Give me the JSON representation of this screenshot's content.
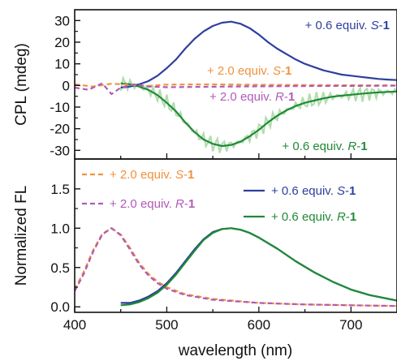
{
  "chart_data": [
    {
      "type": "line",
      "ylabel": "CPL (mdeg)",
      "xlim": [
        400,
        750
      ],
      "ylim": [
        -34,
        35
      ],
      "yticks": [
        -30,
        -20,
        -10,
        0,
        10,
        20,
        30
      ],
      "series": [
        {
          "name": "+ 0.6 equiv. S-1",
          "color": "#2e3f9e",
          "style": "solid",
          "x": [
            450,
            460,
            470,
            480,
            490,
            500,
            510,
            520,
            530,
            540,
            550,
            560,
            570,
            580,
            590,
            600,
            610,
            620,
            630,
            640,
            650,
            660,
            670,
            680,
            690,
            700,
            710,
            720,
            730,
            740,
            750
          ],
          "y": [
            -1,
            -0.5,
            0.5,
            2,
            4.5,
            8,
            12,
            17,
            21.5,
            25,
            27.5,
            29,
            29.5,
            28.5,
            26.5,
            23.5,
            20,
            17,
            14.5,
            12,
            10,
            8.5,
            7,
            6,
            5,
            4.5,
            4,
            3.5,
            3,
            2.7,
            2.5
          ]
        },
        {
          "name": "+ 0.6 equiv. R-1",
          "color": "#1f8a36",
          "style": "solid",
          "x": [
            450,
            460,
            470,
            480,
            490,
            500,
            510,
            520,
            530,
            540,
            550,
            560,
            570,
            580,
            590,
            600,
            610,
            620,
            630,
            640,
            650,
            660,
            670,
            680,
            690,
            700,
            710,
            720,
            730,
            740,
            750
          ],
          "y": [
            1,
            0.5,
            -0.5,
            -2,
            -4.5,
            -8,
            -12,
            -17,
            -21.5,
            -25,
            -27,
            -28,
            -27.5,
            -26,
            -23.5,
            -20.5,
            -17,
            -14,
            -11.5,
            -9.5,
            -8,
            -7,
            -6,
            -5.2,
            -4.7,
            -4.3,
            -3.9,
            -3.5,
            -3.2,
            -3,
            -2.8
          ]
        },
        {
          "name": "+ 2.0 equiv. S-1",
          "color": "#f0923b",
          "style": "dashed",
          "x": [
            400,
            420,
            440,
            460,
            480,
            500,
            550,
            600,
            650,
            700,
            750
          ],
          "y": [
            0.5,
            -0.5,
            0.8,
            0.3,
            -0.2,
            0.4,
            0.5,
            0.3,
            0.2,
            0.1,
            0
          ]
        },
        {
          "name": "+ 2.0 equiv. R-1",
          "color": "#b05bb8",
          "style": "dashed",
          "x": [
            400,
            415,
            430,
            440,
            450,
            465,
            480,
            500,
            550,
            600,
            650,
            700,
            750
          ],
          "y": [
            -1,
            -2,
            1,
            -4,
            -1,
            0.5,
            -0.5,
            -0.8,
            -0.6,
            -0.4,
            -0.3,
            -0.2,
            -0.1
          ]
        }
      ],
      "labels": [
        {
          "parts": [
            {
              "t": "+ 0.6 equiv. "
            },
            {
              "t": "S",
              "i": true
            },
            {
              "t": "-"
            },
            {
              "t": "1",
              "b": true
            }
          ],
          "color": "#2e3f9e"
        },
        {
          "parts": [
            {
              "t": "+ 2.0 equiv. "
            },
            {
              "t": "S",
              "i": true
            },
            {
              "t": "-"
            },
            {
              "t": "1",
              "b": true
            }
          ],
          "color": "#f0923b"
        },
        {
          "parts": [
            {
              "t": "+ 2.0 equiv. "
            },
            {
              "t": "R",
              "i": true
            },
            {
              "t": "-"
            },
            {
              "t": "1",
              "b": true
            }
          ],
          "color": "#b05bb8"
        },
        {
          "parts": [
            {
              "t": "+ 0.6 equiv. "
            },
            {
              "t": "R",
              "i": true
            },
            {
              "t": "-"
            },
            {
              "t": "1",
              "b": true
            }
          ],
          "color": "#1f8a36"
        }
      ]
    },
    {
      "type": "line",
      "xlabel": "wavelength (nm)",
      "ylabel": "Normalized FL",
      "xlim": [
        400,
        750
      ],
      "ylim": [
        -0.07,
        1.88
      ],
      "xticks": [
        400,
        500,
        600,
        700
      ],
      "yticks": [
        0.0,
        0.5,
        1.0,
        1.5
      ],
      "legend_placement": "top",
      "series": [
        {
          "name": "+ 2.0 equiv. S-1",
          "color": "#f0923b",
          "style": "dashed",
          "x": [
            400,
            410,
            420,
            430,
            440,
            450,
            460,
            470,
            480,
            490,
            500,
            520,
            550,
            600,
            650,
            700,
            750
          ],
          "y": [
            0.22,
            0.45,
            0.72,
            0.93,
            1.0,
            0.92,
            0.75,
            0.56,
            0.42,
            0.32,
            0.25,
            0.16,
            0.1,
            0.05,
            0.03,
            0.02,
            0.01
          ]
        },
        {
          "name": "+ 2.0 equiv. R-1",
          "color": "#b05bb8",
          "style": "dashed",
          "x": [
            400,
            410,
            420,
            430,
            440,
            450,
            460,
            470,
            480,
            490,
            500,
            520,
            550,
            600,
            650,
            700,
            750
          ],
          "y": [
            0.2,
            0.42,
            0.7,
            0.92,
            1.0,
            0.91,
            0.73,
            0.54,
            0.4,
            0.3,
            0.23,
            0.15,
            0.09,
            0.05,
            0.03,
            0.02,
            0.01
          ]
        },
        {
          "name": "+ 0.6 equiv. S-1",
          "color": "#2e3f9e",
          "style": "solid",
          "x": [
            450,
            460,
            470,
            480,
            490,
            500,
            510,
            520,
            530,
            540,
            550,
            560,
            570,
            580,
            590,
            600,
            620,
            640,
            660,
            680,
            700,
            720,
            750
          ],
          "y": [
            0.05,
            0.05,
            0.08,
            0.13,
            0.2,
            0.3,
            0.43,
            0.58,
            0.73,
            0.86,
            0.95,
            0.99,
            1.0,
            0.98,
            0.94,
            0.88,
            0.74,
            0.58,
            0.44,
            0.32,
            0.22,
            0.15,
            0.08
          ]
        },
        {
          "name": "+ 0.6 equiv. R-1",
          "color": "#1f8a36",
          "style": "solid",
          "x": [
            450,
            460,
            470,
            480,
            490,
            500,
            510,
            520,
            530,
            540,
            550,
            560,
            570,
            580,
            590,
            600,
            620,
            640,
            660,
            680,
            700,
            720,
            750
          ],
          "y": [
            0.02,
            0.03,
            0.06,
            0.11,
            0.18,
            0.28,
            0.41,
            0.56,
            0.71,
            0.85,
            0.94,
            0.99,
            1.0,
            0.98,
            0.94,
            0.88,
            0.74,
            0.58,
            0.44,
            0.32,
            0.22,
            0.15,
            0.08
          ]
        }
      ],
      "legend": [
        {
          "parts": [
            {
              "t": "+ 2.0 equiv. "
            },
            {
              "t": "S",
              "i": true
            },
            {
              "t": "-"
            },
            {
              "t": "1",
              "b": true
            }
          ],
          "color": "#f0923b",
          "style": "dashed"
        },
        {
          "parts": [
            {
              "t": "+ 2.0 equiv. "
            },
            {
              "t": "R",
              "i": true
            },
            {
              "t": "-"
            },
            {
              "t": "1",
              "b": true
            }
          ],
          "color": "#b05bb8",
          "style": "dashed"
        },
        {
          "parts": [
            {
              "t": "+ 0.6 equiv. "
            },
            {
              "t": "S",
              "i": true
            },
            {
              "t": "-"
            },
            {
              "t": "1",
              "b": true
            }
          ],
          "color": "#2e3f9e",
          "style": "solid"
        },
        {
          "parts": [
            {
              "t": "+ 0.6 equiv. "
            },
            {
              "t": "R",
              "i": true
            },
            {
              "t": "-"
            },
            {
              "t": "1",
              "b": true
            }
          ],
          "color": "#1f8a36",
          "style": "solid"
        }
      ]
    }
  ]
}
